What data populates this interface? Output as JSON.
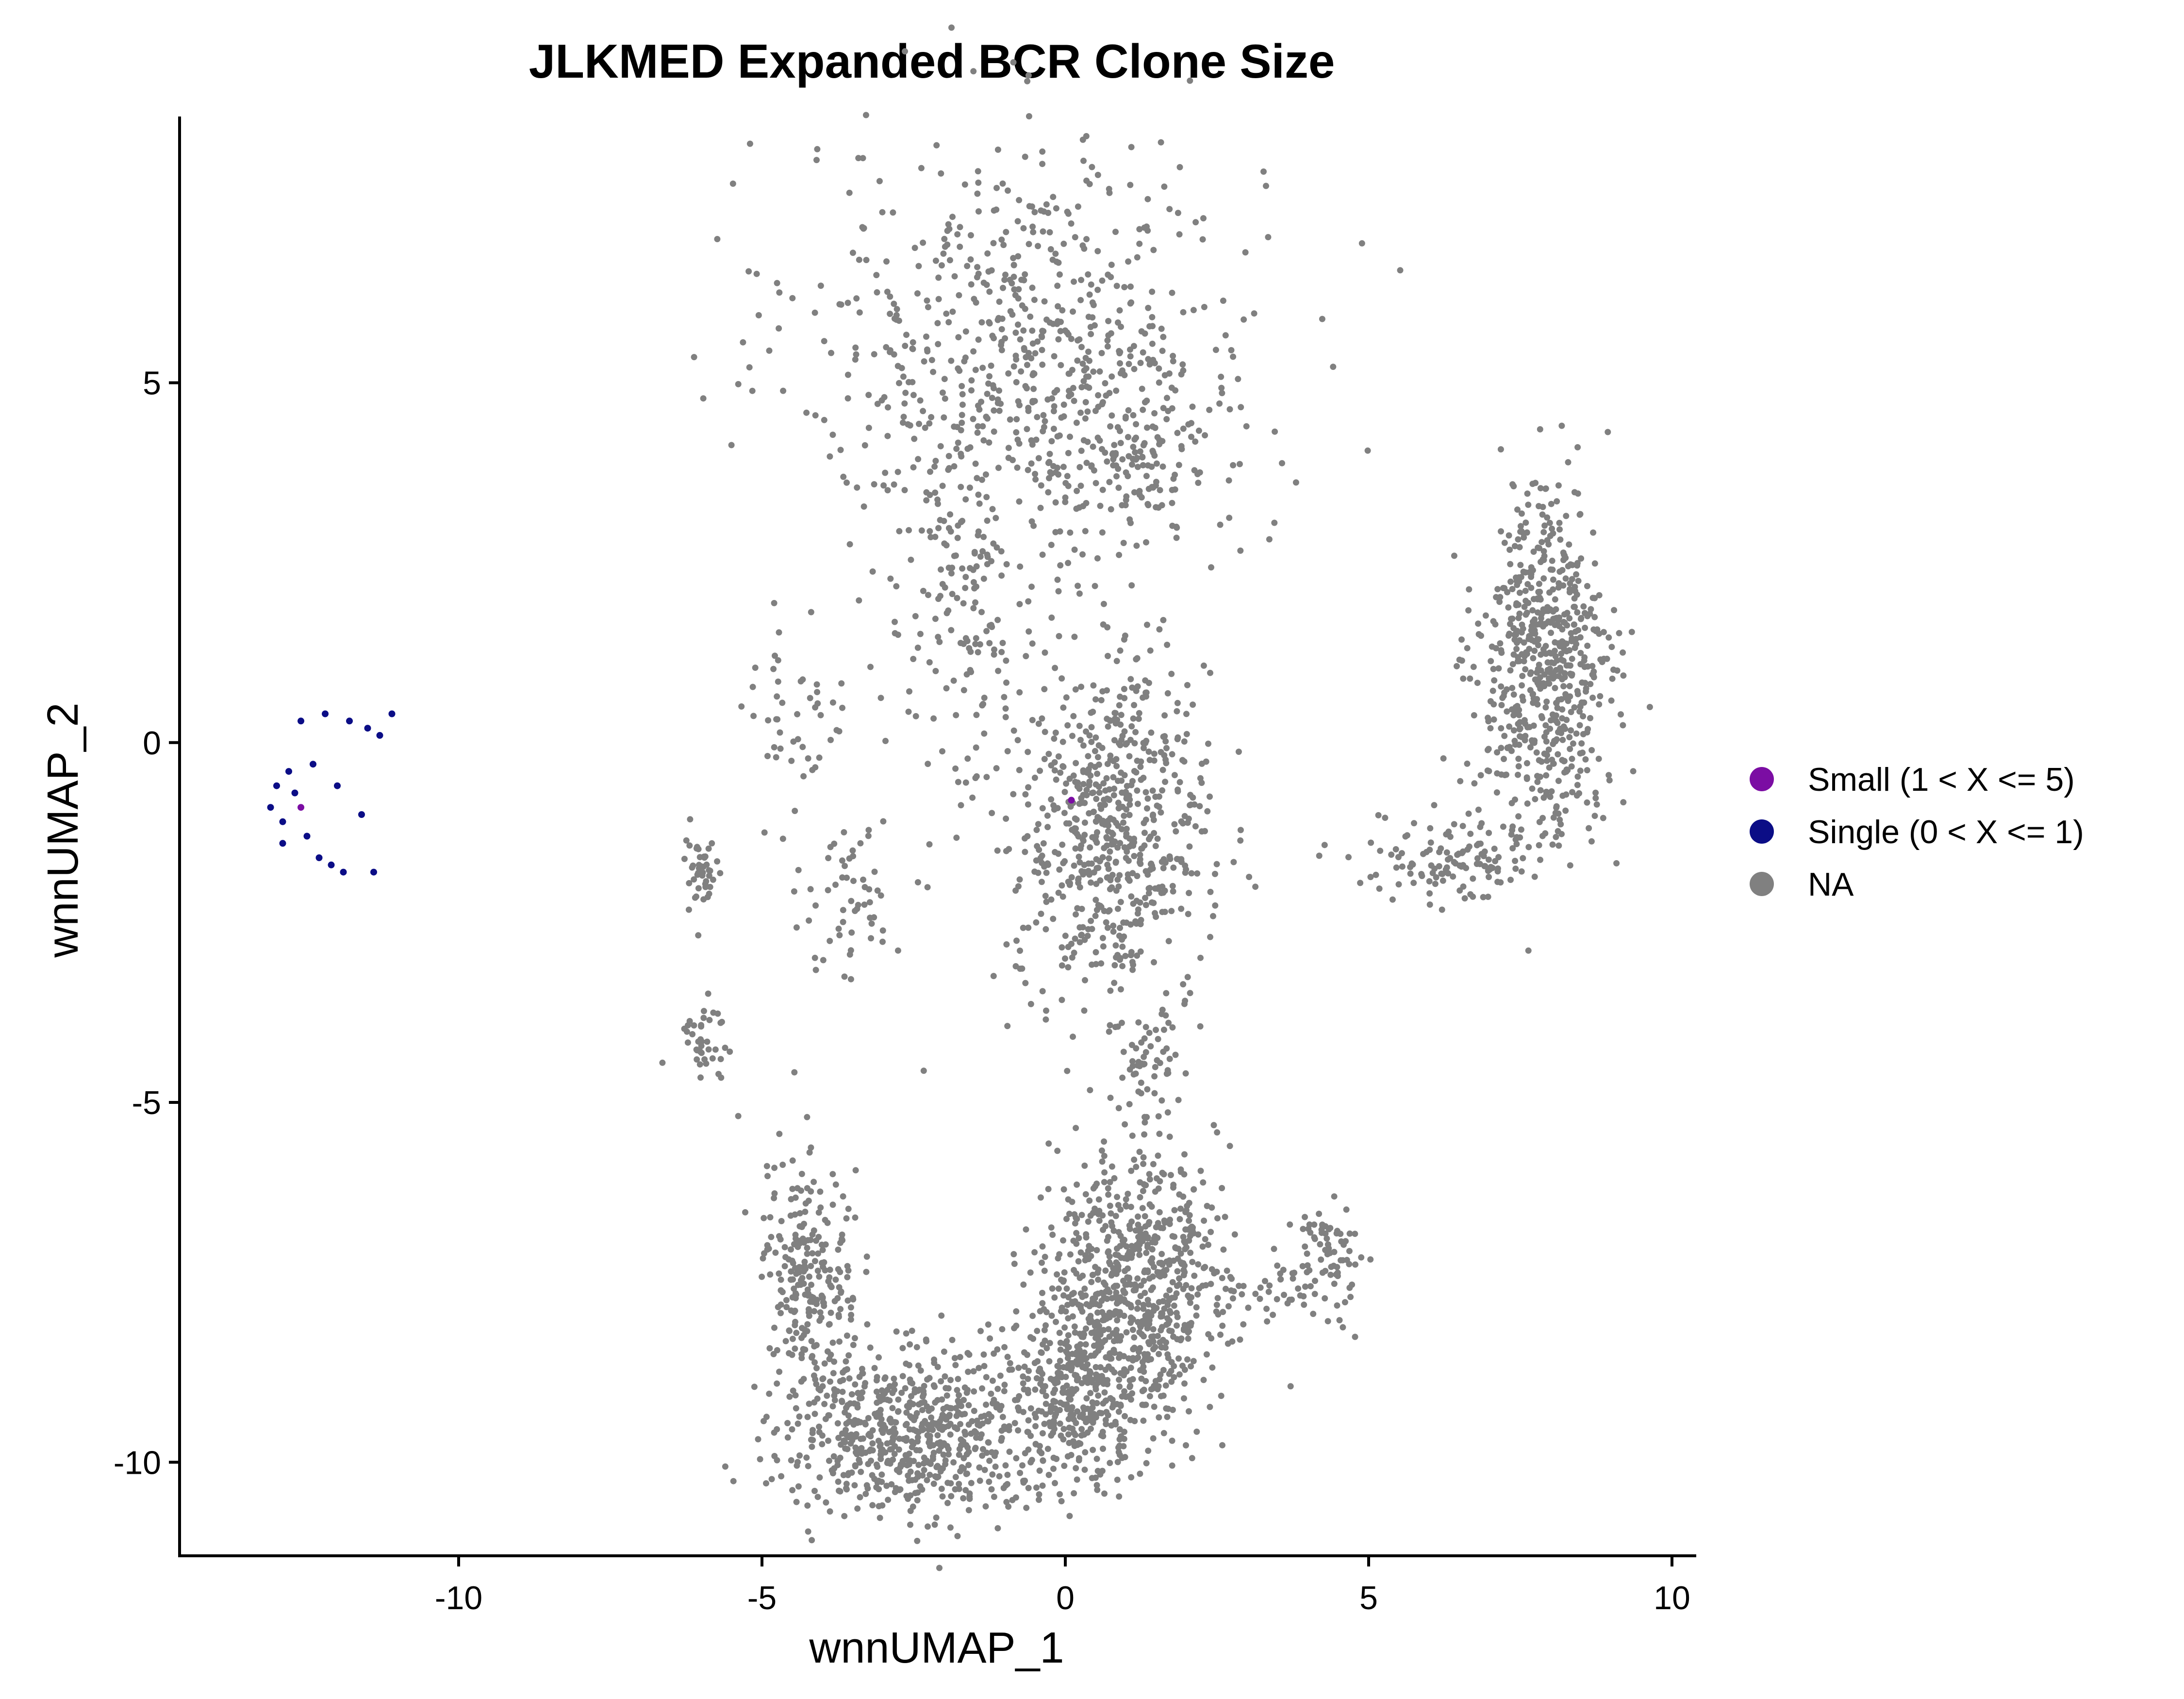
{
  "chart_data": {
    "type": "scatter",
    "title": "JLKMED Expanded BCR Clone Size",
    "xlabel": "wnnUMAP_1",
    "ylabel": "wnnUMAP_2",
    "xlim": [
      -14.6,
      10.4
    ],
    "ylim": [
      -11.3,
      8.7
    ],
    "xticks": [
      -10,
      -5,
      0,
      5,
      10
    ],
    "xtick_labels": [
      "-10",
      "-5",
      "0",
      "5",
      "10"
    ],
    "yticks": [
      -10,
      -5,
      0,
      5
    ],
    "ytick_labels": [
      "-10",
      "-5",
      "0",
      "5"
    ],
    "grid": false,
    "legend_position": "right",
    "legend": [
      {
        "label": "Small (1 < X <= 5)",
        "color": "#7B0DA3"
      },
      {
        "label": "Single (0 < X <= 1)",
        "color": "#0B0D86"
      },
      {
        "label": "NA",
        "color": "#808080"
      }
    ],
    "series": [
      {
        "name": "Small (1 < X <= 5)",
        "color": "#7B0DA3",
        "points": [
          [
            -12.6,
            -0.9
          ],
          [
            0.1,
            -0.8
          ]
        ]
      },
      {
        "name": "Single (0 < X <= 1)",
        "color": "#0B0D86",
        "points": [
          [
            -13.1,
            -0.9
          ],
          [
            -12.9,
            -1.1
          ],
          [
            -12.7,
            -0.7
          ],
          [
            -12.5,
            -1.3
          ],
          [
            -12.3,
            -1.6
          ],
          [
            -12.1,
            -1.7
          ],
          [
            -11.9,
            -1.8
          ],
          [
            -12.6,
            0.3
          ],
          [
            -12.2,
            0.4
          ],
          [
            -11.8,
            0.3
          ],
          [
            -11.5,
            0.2
          ],
          [
            -11.3,
            0.1
          ],
          [
            -11.1,
            0.4
          ],
          [
            -12.4,
            -0.3
          ],
          [
            -12.0,
            -0.6
          ],
          [
            -11.6,
            -1.0
          ],
          [
            -11.4,
            -1.8
          ],
          [
            -12.8,
            -0.4
          ],
          [
            -13.0,
            -0.6
          ],
          [
            -12.9,
            -1.4
          ]
        ]
      },
      {
        "name": "NA",
        "color": "#808080",
        "clusters": [
          {
            "cx": -0.6,
            "cy": 5.4,
            "sx": 1.9,
            "sy": 1.5,
            "n": 700
          },
          {
            "cx": 1.0,
            "cy": 4.2,
            "sx": 0.7,
            "sy": 0.7,
            "n": 120
          },
          {
            "cx": 0.8,
            "cy": -1.2,
            "sx": 0.8,
            "sy": 1.2,
            "n": 650
          },
          {
            "cx": -1.6,
            "cy": 1.6,
            "sx": 0.6,
            "sy": 1.2,
            "n": 150
          },
          {
            "cx": -3.6,
            "cy": -2.2,
            "sx": 0.5,
            "sy": 0.6,
            "n": 60
          },
          {
            "cx": -4.5,
            "cy": 0.4,
            "sx": 0.5,
            "sy": 0.6,
            "n": 45
          },
          {
            "cx": -6.0,
            "cy": -1.8,
            "sx": 0.15,
            "sy": 0.4,
            "n": 45
          },
          {
            "cx": -6.0,
            "cy": -4.1,
            "sx": 0.2,
            "sy": 0.35,
            "n": 40
          },
          {
            "cx": 7.9,
            "cy": 1.0,
            "sx": 0.55,
            "sy": 1.2,
            "n": 650
          },
          {
            "cx": 6.5,
            "cy": -1.6,
            "sx": 0.7,
            "sy": 0.3,
            "n": 120
          },
          {
            "cx": 1.4,
            "cy": -4.3,
            "sx": 0.3,
            "sy": 0.4,
            "n": 50
          },
          {
            "cx": 1.1,
            "cy": -7.6,
            "sx": 0.7,
            "sy": 1.0,
            "n": 750
          },
          {
            "cx": 0.1,
            "cy": -9.0,
            "sx": 0.6,
            "sy": 0.6,
            "n": 300
          },
          {
            "cx": -2.5,
            "cy": -9.6,
            "sx": 1.1,
            "sy": 0.55,
            "n": 650
          },
          {
            "cx": -4.2,
            "cy": -7.4,
            "sx": 0.4,
            "sy": 0.9,
            "n": 250
          },
          {
            "cx": 4.3,
            "cy": -7.3,
            "sx": 0.3,
            "sy": 0.4,
            "n": 80
          },
          {
            "cx": 3.2,
            "cy": -7.6,
            "sx": 0.5,
            "sy": 0.25,
            "n": 40
          }
        ]
      }
    ]
  }
}
